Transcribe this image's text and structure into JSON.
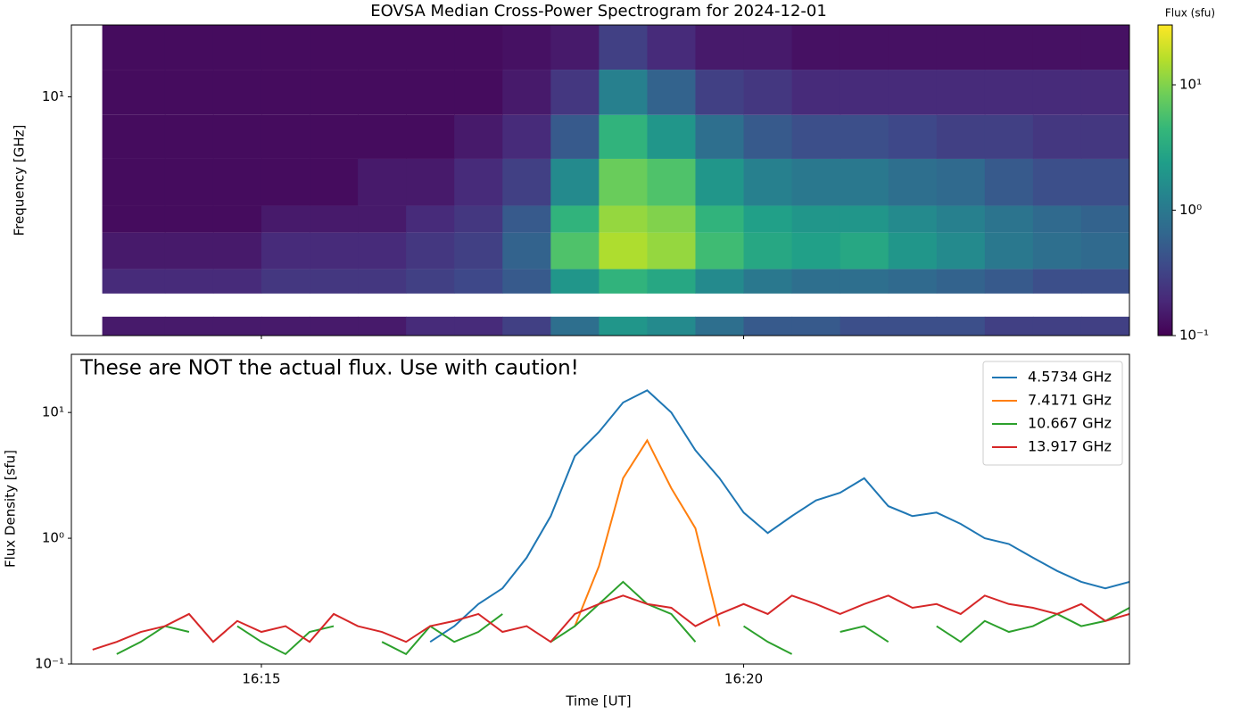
{
  "chart_data": [
    {
      "type": "heatmap",
      "title": "EOVSA Median Cross-Power Spectrogram for 2024-12-01",
      "y_label": "Frequency [GHz]",
      "x_edges": [
        13.35,
        14,
        14.5,
        15,
        15.5,
        16,
        16.5,
        17,
        17.5,
        18,
        18.5,
        19,
        19.5,
        20,
        20.5,
        21,
        21.5,
        22,
        22.5,
        23,
        23.5,
        24
      ],
      "y_edges": [
        1,
        1.2,
        1.5,
        1.9,
        2.7,
        3.5,
        5.5,
        8.4,
        13,
        20
      ],
      "z": [
        [
          0.15,
          0.15,
          0.15,
          0.15,
          0.15,
          0.15,
          0.2,
          0.2,
          0.3,
          0.8,
          2,
          1.5,
          0.8,
          0.5,
          0.5,
          0.4,
          0.4,
          0.4,
          0.3,
          0.3,
          0.3
        ],
        [
          null,
          null,
          null,
          null,
          null,
          null,
          null,
          null,
          null,
          null,
          null,
          null,
          null,
          null,
          null,
          null,
          null,
          null,
          null,
          null,
          null
        ],
        [
          0.2,
          0.2,
          0.2,
          0.25,
          0.25,
          0.25,
          0.3,
          0.35,
          0.5,
          2,
          4,
          3,
          1.5,
          1,
          0.8,
          0.8,
          0.7,
          0.6,
          0.5,
          0.4,
          0.4
        ],
        [
          0.15,
          0.15,
          0.15,
          0.2,
          0.2,
          0.2,
          0.25,
          0.3,
          0.6,
          6,
          15,
          12,
          5,
          3,
          2.5,
          3,
          2,
          1.5,
          1,
          0.8,
          0.7
        ],
        [
          0.12,
          0.12,
          0.12,
          0.15,
          0.15,
          0.15,
          0.2,
          0.25,
          0.5,
          4,
          12,
          10,
          4,
          2.5,
          2,
          2,
          1.5,
          1.2,
          0.9,
          0.7,
          0.6
        ],
        [
          0.12,
          0.12,
          0.12,
          0.12,
          0.12,
          0.15,
          0.15,
          0.2,
          0.3,
          1.5,
          8,
          6,
          2,
          1.2,
          1,
          1,
          0.8,
          0.7,
          0.5,
          0.4,
          0.4
        ],
        [
          0.12,
          0.12,
          0.12,
          0.12,
          0.12,
          0.12,
          0.12,
          0.15,
          0.2,
          0.5,
          4,
          2,
          0.8,
          0.5,
          0.4,
          0.4,
          0.35,
          0.3,
          0.3,
          0.25,
          0.25
        ],
        [
          0.12,
          0.12,
          0.12,
          0.12,
          0.12,
          0.12,
          0.12,
          0.12,
          0.15,
          0.25,
          1.2,
          0.6,
          0.3,
          0.25,
          0.2,
          0.2,
          0.2,
          0.2,
          0.2,
          0.2,
          0.2
        ],
        [
          0.12,
          0.12,
          0.12,
          0.12,
          0.12,
          0.12,
          0.12,
          0.12,
          0.13,
          0.15,
          0.3,
          0.2,
          0.15,
          0.15,
          0.13,
          0.13,
          0.13,
          0.13,
          0.13,
          0.13,
          0.13
        ]
      ],
      "xlim": [
        13.03,
        24.0
      ],
      "ylim": [
        1,
        20
      ],
      "yticks": [
        {
          "value": 10,
          "label": "10¹"
        }
      ],
      "log_y": true,
      "colormap": "viridis",
      "colorbar": {
        "title": "Flux (sfu)",
        "lim": [
          0.1,
          30
        ],
        "log": true,
        "ticks": [
          {
            "value": 0.1,
            "label": "10⁻¹"
          },
          {
            "value": 1,
            "label": "10⁰"
          },
          {
            "value": 10,
            "label": "10¹"
          }
        ]
      }
    },
    {
      "type": "line",
      "annotation": "These are NOT the actual flux. Use with caution!",
      "x_label": "Time [UT]",
      "y_label": "Flux Density [sfu]",
      "x": [
        13.25,
        13.5,
        13.75,
        14,
        14.25,
        14.5,
        14.75,
        15,
        15.25,
        15.5,
        15.75,
        16,
        16.25,
        16.5,
        16.75,
        17,
        17.25,
        17.5,
        17.75,
        18,
        18.25,
        18.5,
        18.75,
        19,
        19.25,
        19.5,
        19.75,
        20,
        20.25,
        20.5,
        20.75,
        21,
        21.25,
        21.5,
        21.75,
        22,
        22.25,
        22.5,
        22.75,
        23,
        23.25,
        23.5,
        23.75,
        24
      ],
      "series": [
        {
          "name": "4.5734 GHz",
          "color": "#1f77b4",
          "values": [
            null,
            null,
            null,
            null,
            null,
            null,
            null,
            null,
            null,
            null,
            null,
            null,
            null,
            null,
            0.15,
            0.2,
            0.3,
            0.4,
            0.7,
            1.5,
            4.5,
            7,
            12,
            15,
            10,
            5,
            3,
            1.6,
            1.1,
            1.5,
            2,
            2.3,
            3,
            1.8,
            1.5,
            1.6,
            1.3,
            1.0,
            0.9,
            0.7,
            0.55,
            0.45,
            0.4,
            0.45
          ]
        },
        {
          "name": "7.4171 GHz",
          "color": "#ff7f0e",
          "values": [
            null,
            null,
            null,
            null,
            null,
            null,
            null,
            null,
            null,
            null,
            null,
            null,
            null,
            null,
            null,
            null,
            null,
            null,
            null,
            null,
            0.2,
            0.6,
            3,
            6,
            2.5,
            1.2,
            0.2,
            null,
            null,
            null,
            null,
            null,
            null,
            null,
            null,
            null,
            null,
            null,
            null,
            null,
            null,
            null,
            null,
            null
          ]
        },
        {
          "name": "10.667 GHz",
          "color": "#2ca02c",
          "values": [
            null,
            0.12,
            0.15,
            0.2,
            0.18,
            null,
            0.2,
            0.15,
            0.12,
            0.18,
            0.2,
            null,
            0.15,
            0.12,
            0.2,
            0.15,
            0.18,
            0.25,
            null,
            0.15,
            0.2,
            0.3,
            0.45,
            0.3,
            0.25,
            0.15,
            null,
            0.2,
            0.15,
            0.12,
            null,
            0.18,
            0.2,
            0.15,
            null,
            0.2,
            0.15,
            0.22,
            0.18,
            0.2,
            0.25,
            0.2,
            0.22,
            0.28
          ]
        },
        {
          "name": "13.917 GHz",
          "color": "#d62728",
          "values": [
            0.13,
            0.15,
            0.18,
            0.2,
            0.25,
            0.15,
            0.22,
            0.18,
            0.2,
            0.15,
            0.25,
            0.2,
            0.18,
            0.15,
            0.2,
            0.22,
            0.25,
            0.18,
            0.2,
            0.15,
            0.25,
            0.3,
            0.35,
            0.3,
            0.28,
            0.2,
            0.25,
            0.3,
            0.25,
            0.35,
            0.3,
            0.25,
            0.3,
            0.35,
            0.28,
            0.3,
            0.25,
            0.35,
            0.3,
            0.28,
            0.25,
            0.3,
            0.22,
            0.25
          ]
        }
      ],
      "xlim": [
        13.03,
        24.0
      ],
      "ylim": [
        0.1,
        29
      ],
      "xticks": [
        {
          "value": 15,
          "label": "16:15"
        },
        {
          "value": 20,
          "label": "16:20"
        }
      ],
      "yticks": [
        {
          "value": 0.1,
          "label": "10⁻¹"
        },
        {
          "value": 1,
          "label": "10⁰"
        },
        {
          "value": 10,
          "label": "10¹"
        }
      ],
      "log_y": true,
      "legend": "upper right"
    }
  ]
}
